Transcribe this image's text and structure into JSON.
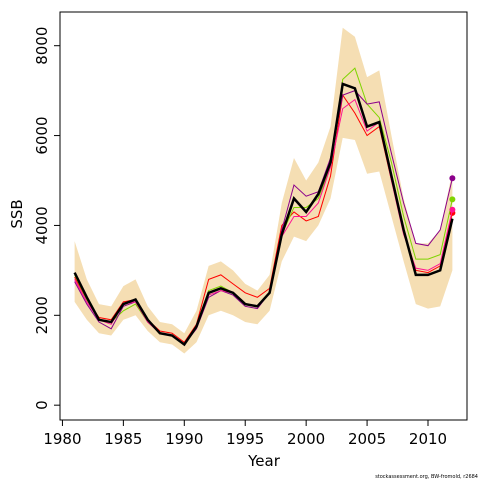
{
  "chart_data": {
    "type": "line",
    "x_label": "Year",
    "y_label": "SSB",
    "footnote": "stockassessment.org, BW-fromold, r2684",
    "x": [
      1981,
      1982,
      1983,
      1984,
      1985,
      1986,
      1987,
      1988,
      1989,
      1990,
      1991,
      1992,
      1993,
      1994,
      1995,
      1996,
      1997,
      1998,
      1999,
      2000,
      2001,
      2002,
      2003,
      2004,
      2005,
      2006,
      2007,
      2008,
      2009,
      2010,
      2011,
      2012
    ],
    "band": {
      "color": "#f5deb3",
      "upper": [
        3650,
        2800,
        2250,
        2200,
        2650,
        2800,
        2200,
        1850,
        1800,
        1600,
        2100,
        3100,
        3200,
        3000,
        2700,
        2550,
        2900,
        4500,
        5500,
        5000,
        5400,
        6200,
        8400,
        8200,
        7300,
        7450,
        6000,
        4600,
        3600,
        3600,
        3900,
        5200
      ],
      "lower": [
        2300,
        1900,
        1600,
        1550,
        1900,
        2000,
        1650,
        1400,
        1350,
        1150,
        1400,
        2000,
        2100,
        2000,
        1850,
        1800,
        2100,
        3200,
        3750,
        3650,
        4000,
        4600,
        5950,
        5900,
        5150,
        5200,
        4200,
        3200,
        2250,
        2150,
        2200,
        3000
      ]
    },
    "series": [
      {
        "color": "#ff0000",
        "width": 1,
        "end_point": true,
        "values": [
          2850,
          2350,
          1950,
          1900,
          2300,
          2350,
          1900,
          1650,
          1600,
          1400,
          1800,
          2800,
          2900,
          2700,
          2500,
          2400,
          2600,
          4000,
          4300,
          4100,
          4200,
          5100,
          6900,
          6500,
          6000,
          6200,
          5000,
          3900,
          3000,
          2950,
          3100,
          4280
        ]
      },
      {
        "color": "#7fd400",
        "width": 1,
        "end_point": true,
        "values": [
          2900,
          2350,
          1900,
          1850,
          2100,
          2250,
          1850,
          1600,
          1550,
          1350,
          1750,
          2550,
          2650,
          2500,
          2250,
          2200,
          2500,
          3800,
          4400,
          4400,
          4600,
          5300,
          7250,
          7500,
          6700,
          6400,
          5400,
          4200,
          3250,
          3250,
          3350,
          4580
        ]
      },
      {
        "color": "#8b008b",
        "width": 1,
        "end_point": true,
        "values": [
          2750,
          2250,
          1850,
          1700,
          2200,
          2300,
          1850,
          1600,
          1550,
          1350,
          1700,
          2400,
          2550,
          2450,
          2200,
          2150,
          2500,
          3900,
          4900,
          4650,
          4750,
          5500,
          6900,
          7000,
          6700,
          6750,
          5600,
          4500,
          3600,
          3550,
          3900,
          5050
        ]
      },
      {
        "color": "#ff1493",
        "width": 1,
        "end_point": true,
        "values": [
          2800,
          2300,
          1900,
          1800,
          2250,
          2300,
          1850,
          1600,
          1550,
          1350,
          1750,
          2450,
          2550,
          2500,
          2250,
          2200,
          2500,
          3750,
          4200,
          4200,
          4500,
          5300,
          6600,
          6800,
          6100,
          6300,
          5000,
          3800,
          3050,
          3000,
          3150,
          4350
        ]
      },
      {
        "color": "#000000",
        "width": 2.5,
        "end_point": false,
        "values": [
          2950,
          2400,
          1900,
          1850,
          2250,
          2350,
          1900,
          1600,
          1550,
          1350,
          1750,
          2500,
          2600,
          2500,
          2250,
          2200,
          2500,
          3800,
          4600,
          4300,
          4700,
          5400,
          7150,
          7050,
          6200,
          6300,
          5100,
          3900,
          2900,
          2900,
          3000,
          4150
        ]
      }
    ],
    "xlim": [
      1979.8,
      2013.2
    ],
    "xticks": [
      1980,
      1985,
      1990,
      1995,
      2000,
      2005,
      2010
    ],
    "ylim": [
      -330,
      8750
    ],
    "yticks": [
      0,
      2000,
      4000,
      6000,
      8000
    ]
  }
}
